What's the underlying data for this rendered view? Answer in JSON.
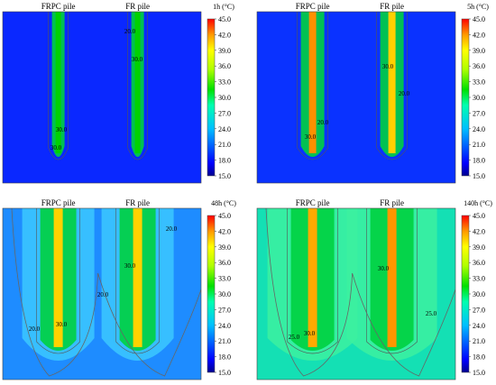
{
  "chart_data": [
    {
      "type": "heatmap",
      "title": "1h (°C)",
      "pile_labels": [
        "FRPC pile",
        "FR pile"
      ],
      "colorbar_ticks": [
        "45.0",
        "42.0",
        "39.0",
        "36.0",
        "33.0",
        "30.0",
        "27.0",
        "24.0",
        "21.0",
        "18.0",
        "15.0"
      ],
      "color_range": [
        15.0,
        45.0
      ],
      "contour_labels": [
        "30.0",
        "30.0",
        "20.0",
        "30.0"
      ]
    },
    {
      "type": "heatmap",
      "title": "5h (°C)",
      "pile_labels": [
        "FRPC pile",
        "FR pile"
      ],
      "colorbar_ticks": [
        "45.0",
        "42.0",
        "39.0",
        "36.0",
        "33.0",
        "30.0",
        "27.0",
        "24.0",
        "21.0",
        "18.0",
        "15.0"
      ],
      "color_range": [
        15.0,
        45.0
      ],
      "contour_labels": [
        "30.0",
        "20.0",
        "20.0",
        "30.0"
      ]
    },
    {
      "type": "heatmap",
      "title": "48h (°C)",
      "pile_labels": [
        "FRPC pile",
        "FR pile"
      ],
      "colorbar_ticks": [
        "45.0",
        "42.0",
        "39.0",
        "36.0",
        "33.0",
        "30.0",
        "27.0",
        "24.0",
        "21.0",
        "18.0",
        "15.0"
      ],
      "color_range": [
        15.0,
        45.0
      ],
      "contour_labels": [
        "20.0",
        "30.0",
        "20.0",
        "20.0",
        "30.0"
      ]
    },
    {
      "type": "heatmap",
      "title": "140h (°C)",
      "pile_labels": [
        "FRPC pile",
        "FR pile"
      ],
      "colorbar_ticks": [
        "45.0",
        "42.0",
        "39.0",
        "36.0",
        "33.0",
        "30.0",
        "27.0",
        "24.0",
        "21.0",
        "18.0",
        "15.0"
      ],
      "color_range": [
        15.0,
        45.0
      ],
      "contour_labels": [
        "30.0",
        "25.0",
        "30.0",
        "25.0"
      ]
    }
  ]
}
